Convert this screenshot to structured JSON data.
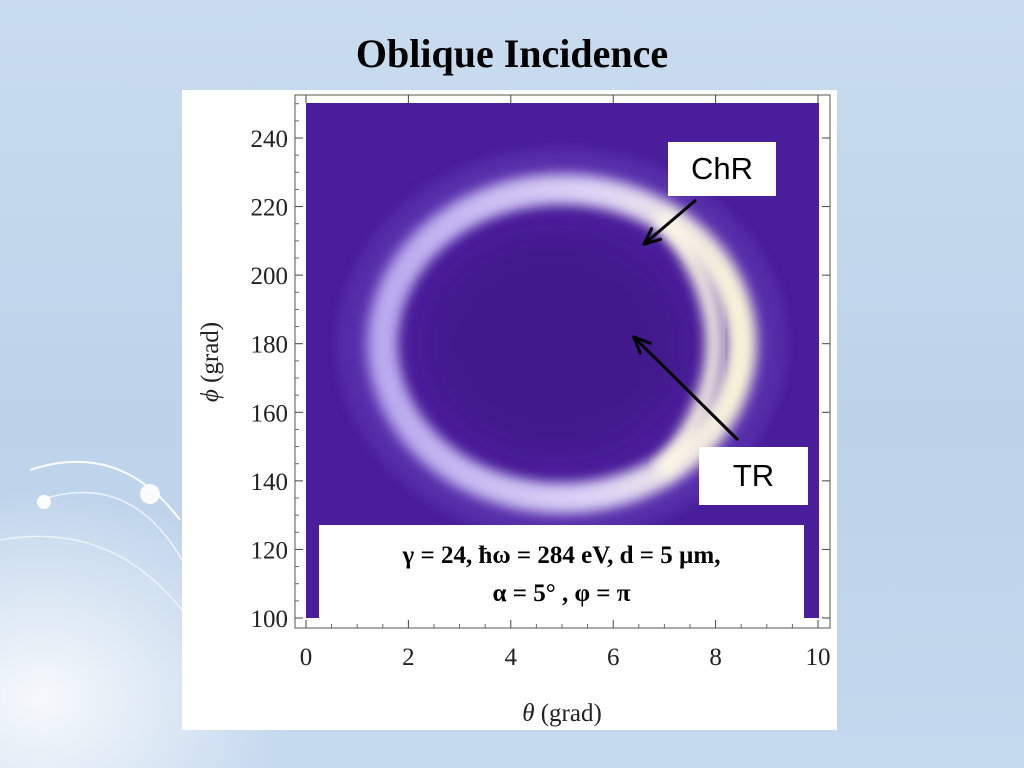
{
  "slide": {
    "title": "Oblique Incidence"
  },
  "colors": {
    "background": "#c4d8ee",
    "plot_low": "#4a1e9a",
    "plot_high": "#f8f3d8"
  },
  "chart_data": {
    "type": "heatmap",
    "title": "",
    "xlabel_symbol": "θ",
    "xlabel_unit": "(grad)",
    "ylabel_symbol": "ϕ",
    "ylabel_unit": "(grad)",
    "xlim": [
      0,
      10
    ],
    "ylim": [
      100,
      255
    ],
    "xticks": [
      "0",
      "2",
      "4",
      "6",
      "8",
      "10"
    ],
    "yticks": [
      "100",
      "120",
      "140",
      "160",
      "180",
      "200",
      "220",
      "240"
    ],
    "colormap": "purple-white",
    "features": [
      {
        "name": "ring",
        "description_values": {
          "center_theta": 5.0,
          "center_phi": 180,
          "theta_max": 8.5,
          "phi_range": [
            135,
            225
          ]
        }
      }
    ],
    "annotations": [
      {
        "label": "ChR",
        "arrow_tip": [
          6.6,
          209
        ]
      },
      {
        "label": "TR",
        "arrow_tip": [
          6.4,
          182
        ]
      }
    ],
    "parameters": {
      "line1": "γ = 24, ħω = 284 eV, d = 5 µm,",
      "line2": "α = 5°   , φ = π"
    }
  }
}
